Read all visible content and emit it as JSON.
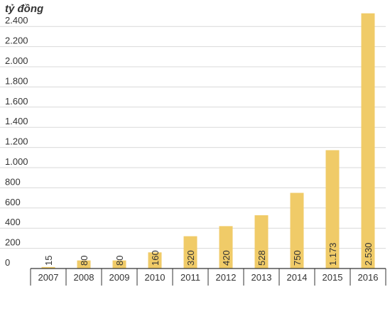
{
  "chart_data": {
    "type": "bar",
    "unit_label": "tỷ đồng",
    "categories": [
      "2007",
      "2008",
      "2009",
      "2010",
      "2011",
      "2012",
      "2013",
      "2014",
      "2015",
      "2016"
    ],
    "values": [
      15,
      80,
      80,
      160,
      320,
      420,
      528,
      750,
      1173,
      2530
    ],
    "value_labels": [
      "15",
      "80",
      "80",
      "160",
      "320",
      "420",
      "528",
      "750",
      "1.173",
      "2.530"
    ],
    "y_ticks": [
      0,
      200,
      400,
      600,
      800,
      1000,
      1200,
      1400,
      1600,
      1800,
      2000,
      2200,
      2400
    ],
    "y_tick_labels": [
      "0",
      "200",
      "400",
      "600",
      "800",
      "1.000",
      "1.200",
      "1.400",
      "1.600",
      "1.800",
      "2.000",
      "2.200",
      "2.400"
    ],
    "ylim": [
      0,
      2530
    ],
    "grid": true,
    "colors": {
      "bar": "#f0cb68",
      "grid": "#d9d9d9",
      "axis": "#333333",
      "text": "#333333"
    }
  }
}
